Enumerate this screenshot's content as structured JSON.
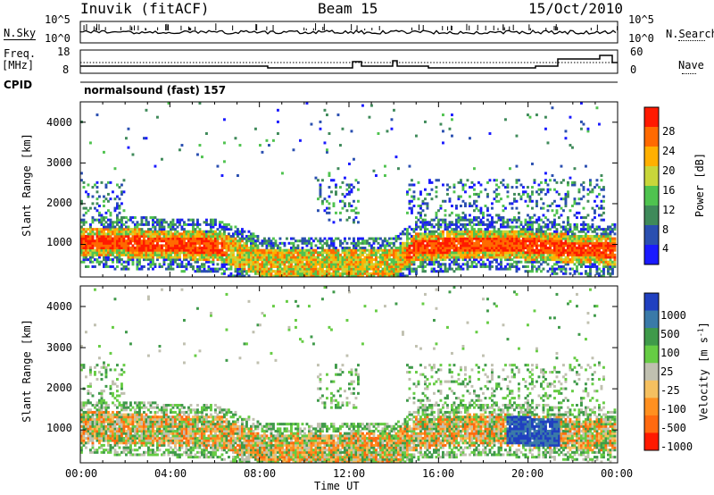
{
  "header": {
    "station": "Inuvik (fitACF)",
    "beam": "Beam 15",
    "date": "15/Oct/2010"
  },
  "strip_labels": {
    "nsky": "N.Sky",
    "freq": "Freq.",
    "freq_unit": "[MHz]",
    "cpid": "CPID",
    "nsearch": "N.Search",
    "nave": "Nave",
    "cpid_value": "normalsound (fast) 157"
  },
  "noise_axis": {
    "left_top": "10^5",
    "left_bottom": "10^0",
    "right_top": "10^5",
    "right_bottom": "10^0"
  },
  "freq_axis": {
    "left_ticks": [
      "18",
      "8"
    ],
    "right_ticks": [
      "60",
      "0"
    ]
  },
  "chart_data": [
    {
      "type": "heatmap",
      "title": "Power",
      "ylabel": "Slant Range [km]",
      "yticks": [
        "1000",
        "2000",
        "3000",
        "4000"
      ],
      "ylim": [
        200,
        4500
      ],
      "x": [
        "00:00",
        "04:00",
        "08:00",
        "12:00",
        "16:00",
        "20:00",
        "00:00"
      ],
      "colorbar_label": "Power [dB]",
      "colorbar_ticks": [
        "4",
        "8",
        "12",
        "16",
        "20",
        "24",
        "28"
      ],
      "colors": [
        "#1a1aff",
        "#2a4fb0",
        "#3f8a5a",
        "#4fc34f",
        "#c8d63a",
        "#ffb000",
        "#ff6a00",
        "#ff1a00"
      ]
    },
    {
      "type": "heatmap",
      "title": "Velocity",
      "ylabel": "Slant Range [km]",
      "yticks": [
        "1000",
        "2000",
        "3000",
        "4000"
      ],
      "ylim": [
        200,
        4500
      ],
      "x": [
        "00:00",
        "04:00",
        "08:00",
        "12:00",
        "16:00",
        "20:00",
        "00:00"
      ],
      "colorbar_label": "Velocity",
      "colorbar_unit": "[m s",
      "colorbar_unit_sup": "-1",
      "colorbar_unit_end": "]",
      "colorbar_ticks": [
        "1000",
        "500",
        "100",
        "25",
        "-25",
        "-100",
        "-500",
        "-1000"
      ],
      "colors": [
        "#2040c0",
        "#3a7aa8",
        "#3f9a4a",
        "#66cc44",
        "#c0c0b0",
        "#f5c060",
        "#ff9020",
        "#ff6a10",
        "#ff1a00"
      ]
    }
  ],
  "xaxis_label": "Time UT"
}
